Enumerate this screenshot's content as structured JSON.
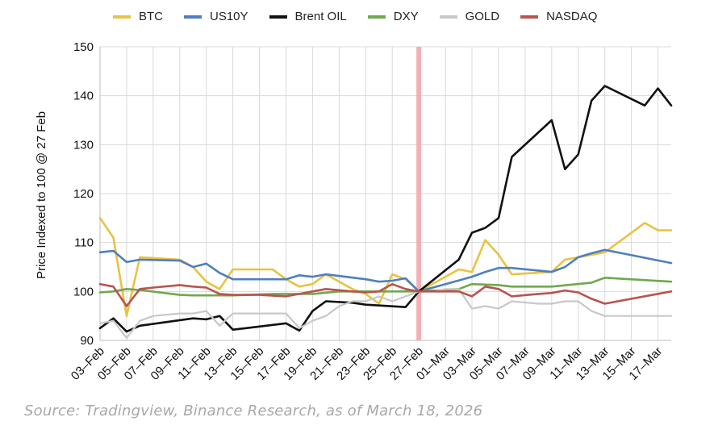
{
  "chart_data": {
    "type": "line",
    "title": "",
    "xlabel": "",
    "ylabel": "Price Indexed to 100 @ 27 Feb",
    "ylim": [
      90,
      150
    ],
    "yticks": [
      90,
      100,
      110,
      120,
      130,
      140,
      150
    ],
    "xlim": [
      0,
      42
    ],
    "x_tick_labels": [
      "03–Feb",
      "05–Feb",
      "07–Feb",
      "09–Feb",
      "11–Feb",
      "13–Feb",
      "15–Feb",
      "17–Feb",
      "19–Feb",
      "21–Feb",
      "23–Feb",
      "25–Feb",
      "27–Feb",
      "01–Mar",
      "03–Mar",
      "05–Mar",
      "07–Mar",
      "09–Mar",
      "11–Mar",
      "13–Mar",
      "15–Mar",
      "17–Mar"
    ],
    "highlight_x": 24,
    "grid": true,
    "legend_position": "top",
    "series": [
      {
        "name": "BTC",
        "color": "#e8c341",
        "points": [
          [
            0,
            115
          ],
          [
            1,
            111
          ],
          [
            2,
            95
          ],
          [
            3,
            107
          ],
          [
            6,
            106.5
          ],
          [
            7,
            105
          ],
          [
            8,
            102
          ],
          [
            9,
            100.5
          ],
          [
            10,
            104.5
          ],
          [
            13,
            104.5
          ],
          [
            14,
            102.5
          ],
          [
            15,
            101
          ],
          [
            16,
            101.5
          ],
          [
            17,
            103.5
          ],
          [
            18,
            102
          ],
          [
            19,
            100.5
          ],
          [
            20,
            99.5
          ],
          [
            21,
            97.5
          ],
          [
            22,
            103.5
          ],
          [
            23,
            102.5
          ],
          [
            24,
            100
          ],
          [
            25,
            101.5
          ],
          [
            26,
            103
          ],
          [
            27,
            104.5
          ],
          [
            28,
            104
          ],
          [
            29,
            110.5
          ],
          [
            30,
            107.5
          ],
          [
            31,
            103.5
          ],
          [
            34,
            104
          ],
          [
            35,
            106.5
          ],
          [
            36,
            107
          ],
          [
            38,
            108
          ],
          [
            41,
            114
          ],
          [
            42,
            112.5
          ],
          [
            43,
            112.5
          ]
        ]
      },
      {
        "name": "US10Y",
        "color": "#4f7fc0",
        "points": [
          [
            0,
            108
          ],
          [
            1,
            108.3
          ],
          [
            2,
            106
          ],
          [
            3,
            106.5
          ],
          [
            6,
            106.3
          ],
          [
            7,
            105
          ],
          [
            8,
            105.7
          ],
          [
            9,
            103.8
          ],
          [
            10,
            102.5
          ],
          [
            14,
            102.5
          ],
          [
            15,
            103.3
          ],
          [
            16,
            103
          ],
          [
            17,
            103.5
          ],
          [
            20,
            102.5
          ],
          [
            21,
            102
          ],
          [
            22,
            102.2
          ],
          [
            23,
            102.7
          ],
          [
            24,
            100
          ],
          [
            26,
            101.5
          ],
          [
            28,
            103
          ],
          [
            29,
            104
          ],
          [
            30,
            104.8
          ],
          [
            31,
            104.8
          ],
          [
            34,
            104
          ],
          [
            35,
            105
          ],
          [
            36,
            107
          ],
          [
            37,
            107.8
          ],
          [
            38,
            108.5
          ],
          [
            43,
            105.8
          ]
        ]
      },
      {
        "name": "Brent OIL",
        "color": "#111111",
        "points": [
          [
            0,
            92.5
          ],
          [
            1,
            94.5
          ],
          [
            2,
            91.8
          ],
          [
            3,
            93
          ],
          [
            7,
            94.5
          ],
          [
            8,
            94.3
          ],
          [
            9,
            95
          ],
          [
            10,
            92.2
          ],
          [
            11,
            92.5
          ],
          [
            14,
            93.5
          ],
          [
            15,
            92
          ],
          [
            16,
            96
          ],
          [
            17,
            98
          ],
          [
            19,
            97.7
          ],
          [
            20,
            97.3
          ],
          [
            23,
            96.8
          ],
          [
            24,
            100
          ],
          [
            27,
            106.5
          ],
          [
            28,
            112
          ],
          [
            29,
            113
          ],
          [
            30,
            115
          ],
          [
            31,
            127.5
          ],
          [
            34,
            135
          ],
          [
            35,
            125
          ],
          [
            36,
            128
          ],
          [
            37,
            139
          ],
          [
            38,
            142
          ],
          [
            41,
            138
          ],
          [
            42,
            141.5
          ],
          [
            43,
            138
          ]
        ]
      },
      {
        "name": "DXY",
        "color": "#6fa84f",
        "points": [
          [
            0,
            99.8
          ],
          [
            1,
            100
          ],
          [
            2,
            100.5
          ],
          [
            3,
            100.3
          ],
          [
            6,
            99.3
          ],
          [
            7,
            99.2
          ],
          [
            10,
            99.2
          ],
          [
            13,
            99.5
          ],
          [
            16,
            99.5
          ],
          [
            18,
            100
          ],
          [
            22,
            100
          ],
          [
            24,
            100
          ],
          [
            27,
            100.5
          ],
          [
            28,
            101.5
          ],
          [
            30,
            101.3
          ],
          [
            31,
            101
          ],
          [
            34,
            101
          ],
          [
            37,
            101.8
          ],
          [
            38,
            102.8
          ],
          [
            43,
            102
          ]
        ]
      },
      {
        "name": "GOLD",
        "color": "#c8c8c8",
        "points": [
          [
            0,
            93.5
          ],
          [
            1,
            94
          ],
          [
            2,
            90.5
          ],
          [
            3,
            94
          ],
          [
            4,
            95
          ],
          [
            6,
            95.5
          ],
          [
            7,
            95.5
          ],
          [
            8,
            96
          ],
          [
            9,
            93
          ],
          [
            10,
            95.5
          ],
          [
            14,
            95.5
          ],
          [
            15,
            92.5
          ],
          [
            16,
            94
          ],
          [
            17,
            95
          ],
          [
            18,
            97
          ],
          [
            19,
            98
          ],
          [
            20,
            98
          ],
          [
            21,
            99
          ],
          [
            22,
            98
          ],
          [
            23,
            99
          ],
          [
            24,
            100
          ],
          [
            25,
            100
          ],
          [
            26,
            100.5
          ],
          [
            27,
            100.5
          ],
          [
            28,
            96.5
          ],
          [
            29,
            97
          ],
          [
            30,
            96.5
          ],
          [
            31,
            98
          ],
          [
            33,
            97.5
          ],
          [
            34,
            97.5
          ],
          [
            35,
            98
          ],
          [
            36,
            98
          ],
          [
            37,
            96
          ],
          [
            38,
            95
          ],
          [
            40,
            95
          ],
          [
            43,
            95
          ]
        ]
      },
      {
        "name": "NASDAQ",
        "color": "#b85450",
        "points": [
          [
            0,
            101.5
          ],
          [
            1,
            101
          ],
          [
            2,
            97
          ],
          [
            3,
            100.5
          ],
          [
            4,
            100.8
          ],
          [
            6,
            101.3
          ],
          [
            7,
            101
          ],
          [
            8,
            100.8
          ],
          [
            9,
            99.5
          ],
          [
            10,
            99.3
          ],
          [
            12,
            99.3
          ],
          [
            14,
            99
          ],
          [
            16,
            100
          ],
          [
            17,
            100.5
          ],
          [
            19,
            100
          ],
          [
            20,
            99.8
          ],
          [
            21,
            100
          ],
          [
            22,
            101.5
          ],
          [
            23,
            100.5
          ],
          [
            24,
            100
          ],
          [
            27,
            100
          ],
          [
            28,
            99
          ],
          [
            29,
            101
          ],
          [
            30,
            100.5
          ],
          [
            31,
            99
          ],
          [
            33,
            99.5
          ],
          [
            34,
            99.7
          ],
          [
            35,
            100.2
          ],
          [
            36,
            99.8
          ],
          [
            37,
            98.5
          ],
          [
            38,
            97.5
          ],
          [
            43,
            100
          ]
        ]
      }
    ]
  },
  "source_text": "Source: Tradingview, Binance Research, as of March 18, 2026"
}
